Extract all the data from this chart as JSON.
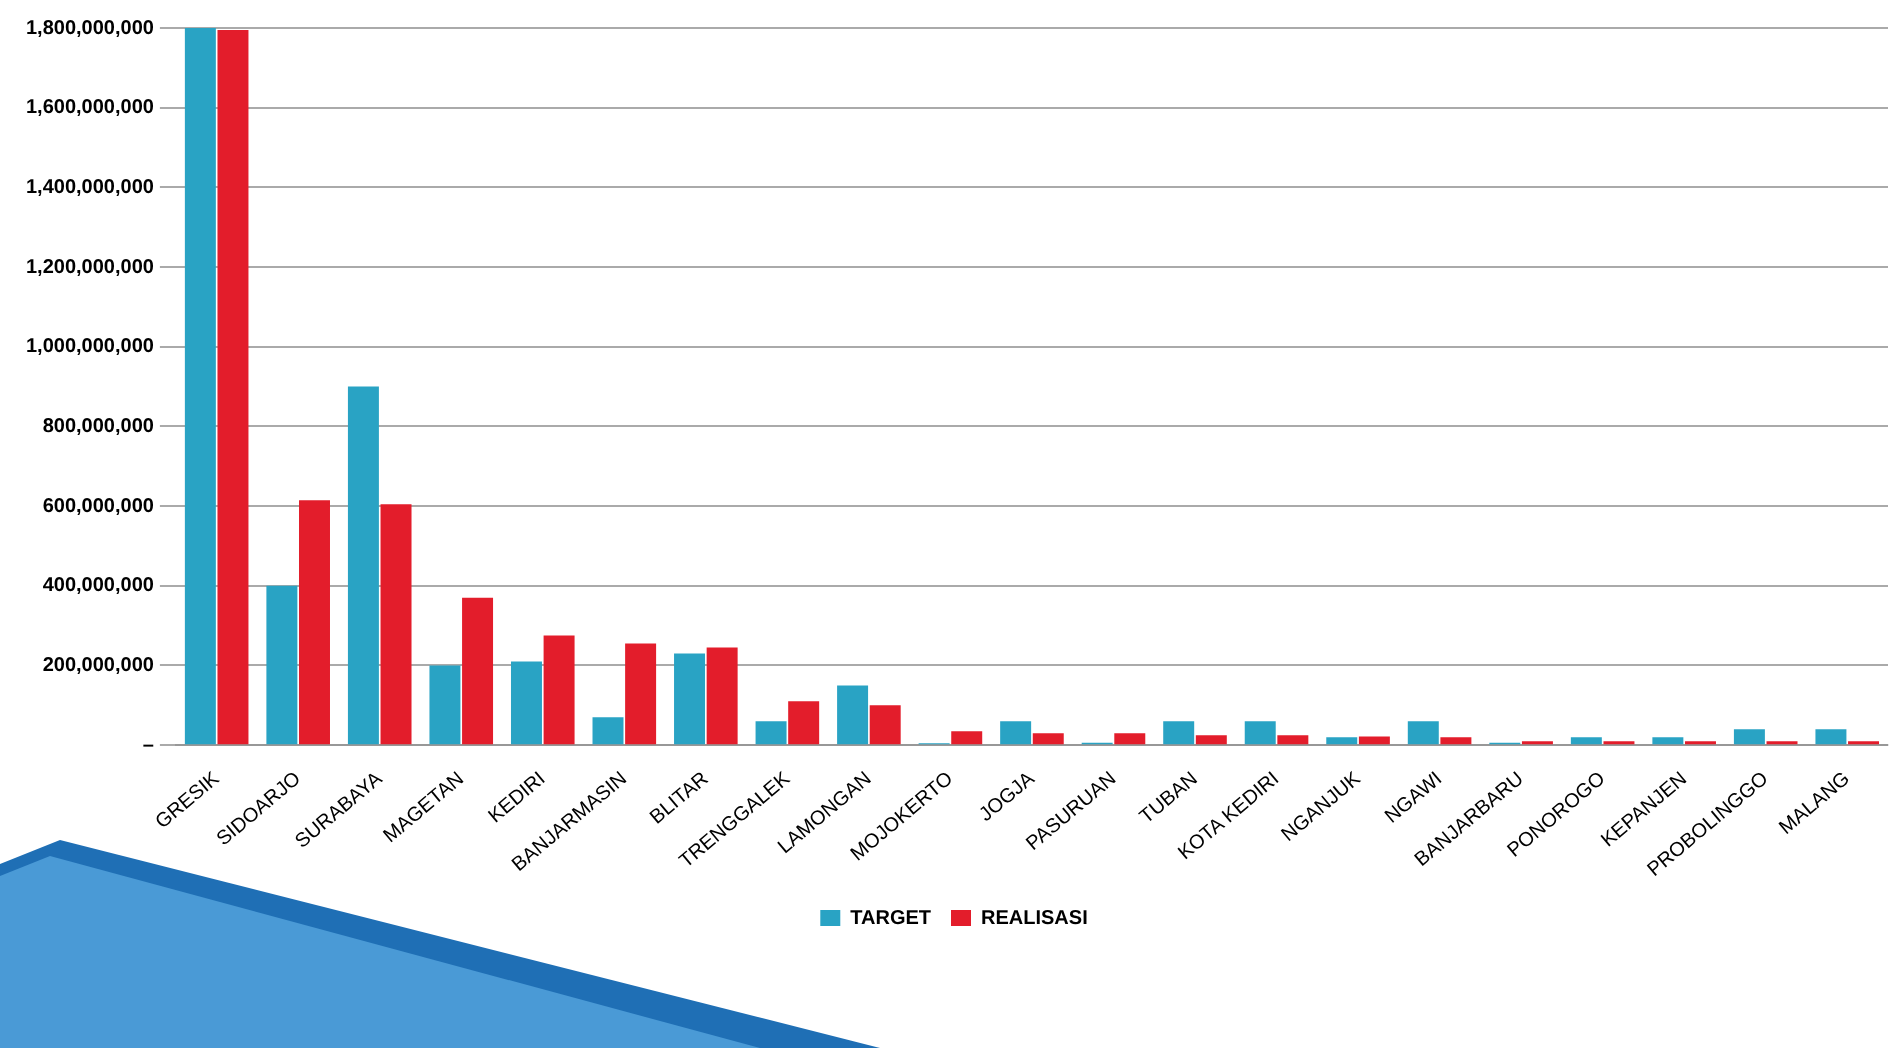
{
  "chart_data": {
    "type": "bar",
    "categories": [
      "GRESIK",
      "SIDOARJO",
      "SURABAYA",
      "MAGETAN",
      "KEDIRI",
      "BANJARMASIN",
      "BLITAR",
      "TRENGGALEK",
      "LAMONGAN",
      "MOJOKERTO",
      "JOGJA",
      "PASURUAN",
      "TUBAN",
      "KOTA KEDIRI",
      "NGANJUK",
      "NGAWI",
      "BANJARBARU",
      "PONOROGO",
      "KEPANJEN",
      "PROBOLINGGO",
      "MALANG"
    ],
    "series": [
      {
        "name": "TARGET",
        "color": "#29a3c4",
        "values": [
          1800000000,
          400000000,
          900000000,
          200000000,
          210000000,
          70000000,
          230000000,
          60000000,
          150000000,
          5000000,
          60000000,
          6000000,
          60000000,
          60000000,
          20000000,
          60000000,
          6000000,
          20000000,
          20000000,
          40000000,
          40000000
        ]
      },
      {
        "name": "REALISASI",
        "color": "#e31d2b",
        "values": [
          1795000000,
          615000000,
          605000000,
          370000000,
          275000000,
          255000000,
          245000000,
          110000000,
          100000000,
          35000000,
          30000000,
          30000000,
          25000000,
          25000000,
          22000000,
          20000000,
          10000000,
          10000000,
          10000000,
          10000000,
          10000000
        ]
      }
    ],
    "ylim": [
      0,
      1800000000
    ],
    "yticks": [
      {
        "value": 0,
        "label": "–"
      },
      {
        "value": 200000000,
        "label": "200,000,000"
      },
      {
        "value": 400000000,
        "label": "400,000,000"
      },
      {
        "value": 600000000,
        "label": "600,000,000"
      },
      {
        "value": 800000000,
        "label": "800,000,000"
      },
      {
        "value": 1000000000,
        "label": "1,000,000,000"
      },
      {
        "value": 1200000000,
        "label": "1,200,000,000"
      },
      {
        "value": 1400000000,
        "label": "1,400,000,000"
      },
      {
        "value": 1600000000,
        "label": "1,600,000,000"
      },
      {
        "value": 1800000000,
        "label": "1,800,000,000"
      }
    ],
    "grid": "y",
    "legend": "bottom"
  }
}
